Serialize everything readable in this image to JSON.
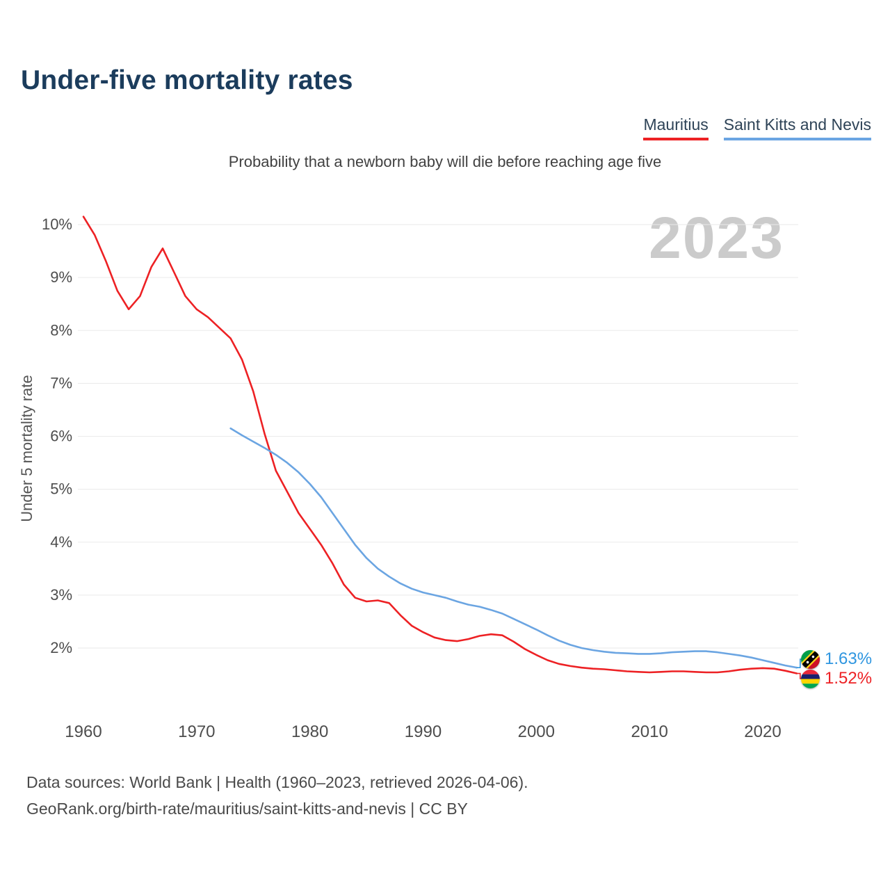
{
  "header": {
    "title": "Under-five mortality rates"
  },
  "subtitle": "Probability that a newborn baby will die before reaching age five",
  "watermark": "2023",
  "legend": [
    {
      "label": "Mauritius",
      "color": "#ed2124"
    },
    {
      "label": "Saint Kitts and Nevis",
      "color": "#6ba5e2"
    }
  ],
  "end_labels": [
    {
      "series": "Saint Kitts and Nevis",
      "value": "1.63%",
      "color": "#2f96e0",
      "flag": "saint-kitts-and-nevis"
    },
    {
      "series": "Mauritius",
      "value": "1.52%",
      "color": "#ed2124",
      "flag": "mauritius"
    }
  ],
  "footer": {
    "line1": "Data sources: World Bank | Health (1960–2023, retrieved 2026-04-06).",
    "line2": "GeoRank.org/birth-rate/mauritius/saint-kitts-and-nevis | CC BY"
  },
  "chart_data": {
    "type": "line",
    "title": "Under-five mortality rates",
    "subtitle": "Probability that a newborn baby will die before reaching age five",
    "xlabel": "",
    "ylabel": "Under 5 mortality rate",
    "ylim": [
      1.3,
      10.3
    ],
    "xlim": [
      1960,
      2023
    ],
    "yticks": [
      2,
      3,
      4,
      5,
      6,
      7,
      8,
      9,
      10
    ],
    "ytick_suffix": "%",
    "xticks": [
      1960,
      1970,
      1980,
      1990,
      2000,
      2010,
      2020
    ],
    "grid": true,
    "legend_position": "top-right",
    "series": [
      {
        "name": "Mauritius",
        "color": "#ed2124",
        "start_year": 1960,
        "values": [
          10.15,
          9.8,
          9.3,
          8.75,
          8.4,
          8.65,
          9.2,
          9.55,
          9.1,
          8.65,
          8.4,
          8.25,
          8.05,
          7.85,
          7.45,
          6.85,
          6.05,
          5.35,
          4.95,
          4.55,
          4.25,
          3.95,
          3.6,
          3.2,
          2.95,
          2.88,
          2.9,
          2.85,
          2.62,
          2.42,
          2.3,
          2.2,
          2.15,
          2.13,
          2.17,
          2.23,
          2.26,
          2.24,
          2.12,
          1.98,
          1.87,
          1.77,
          1.7,
          1.66,
          1.63,
          1.61,
          1.6,
          1.58,
          1.56,
          1.55,
          1.54,
          1.55,
          1.56,
          1.56,
          1.55,
          1.54,
          1.54,
          1.56,
          1.59,
          1.61,
          1.62,
          1.61,
          1.57,
          1.52
        ]
      },
      {
        "name": "Saint Kitts and Nevis",
        "color": "#6ba5e2",
        "start_year": 1973,
        "values": [
          6.15,
          6.02,
          5.9,
          5.78,
          5.65,
          5.5,
          5.32,
          5.1,
          4.85,
          4.55,
          4.25,
          3.95,
          3.7,
          3.5,
          3.35,
          3.22,
          3.12,
          3.05,
          3.0,
          2.95,
          2.88,
          2.82,
          2.78,
          2.72,
          2.65,
          2.55,
          2.45,
          2.35,
          2.24,
          2.14,
          2.06,
          2.0,
          1.96,
          1.93,
          1.91,
          1.9,
          1.89,
          1.89,
          1.9,
          1.92,
          1.93,
          1.94,
          1.94,
          1.92,
          1.89,
          1.86,
          1.82,
          1.77,
          1.72,
          1.67,
          1.63
        ]
      }
    ]
  }
}
